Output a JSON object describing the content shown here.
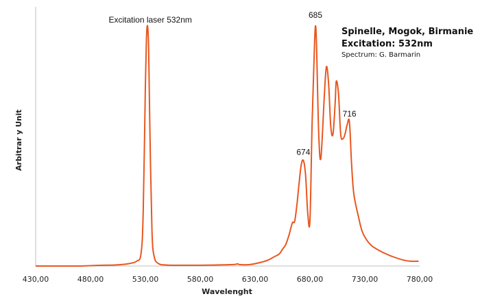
{
  "chart_data": {
    "type": "line",
    "title_lines": [
      "Spinelle, Mogok, Birmanie",
      "Excitation: 532nm"
    ],
    "credit": "Spectrum: G. Barmarin",
    "xlabel": "Wavelenght",
    "ylabel": "Arbitrar y Unit",
    "xlim": [
      430,
      780
    ],
    "ylim": [
      0,
      100
    ],
    "x_tick_labels": [
      "430,00",
      "480,00",
      "530,00",
      "580,00",
      "630,00",
      "680,00",
      "730,00",
      "780,00"
    ],
    "x_tick_values": [
      430,
      480,
      530,
      580,
      630,
      680,
      730,
      780
    ],
    "grid": false,
    "line_color": "#e8561e",
    "annotations": [
      {
        "text": "Excitation laser 532nm",
        "x": 532,
        "y": 100
      },
      {
        "text": "685",
        "x": 685,
        "y": 100
      },
      {
        "text": "674",
        "x": 674,
        "y": 44
      },
      {
        "text": "716",
        "x": 716,
        "y": 60
      }
    ],
    "series": [
      {
        "x": [
          430,
          450,
          470,
          490,
          505,
          515,
          522,
          526,
          528,
          530,
          531,
          532,
          533,
          534,
          536,
          538,
          542,
          550,
          570,
          590,
          610,
          614,
          616,
          625,
          635,
          642,
          648,
          652,
          655,
          658,
          661,
          664,
          666,
          668,
          670,
          672,
          674,
          676,
          678,
          680,
          682,
          684,
          685,
          686,
          688,
          690,
          693,
          695,
          697,
          699,
          701,
          703,
          704,
          706,
          708,
          710,
          712,
          714,
          716,
          718,
          720,
          724,
          728,
          735,
          745,
          755,
          765,
          772,
          779
        ],
        "y": [
          0,
          0,
          0,
          0.3,
          0.5,
          1,
          2,
          5,
          22,
          75,
          95,
          100,
          90,
          60,
          15,
          4,
          1,
          0.4,
          0.3,
          0.4,
          0.6,
          0.9,
          0.6,
          0.6,
          1.5,
          2.5,
          4,
          5,
          7,
          9,
          13,
          18,
          18.5,
          25,
          34,
          42,
          44,
          38,
          22,
          19,
          60,
          90,
          100,
          92,
          55,
          45,
          70,
          83,
          76,
          58,
          55,
          68,
          77,
          72,
          55,
          53,
          55,
          59,
          60,
          42,
          30,
          21,
          14,
          9,
          6,
          4,
          2.5,
          2,
          2
        ]
      }
    ]
  }
}
